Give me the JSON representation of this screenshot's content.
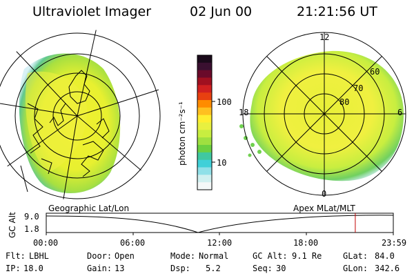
{
  "header": {
    "instrument": "Ultraviolet Imager",
    "date": "02 Jun 00",
    "time": "21:21:56 UT"
  },
  "left_view": {
    "label": "Geographic Lat/Lon"
  },
  "right_view": {
    "label": "Apex MLat/MLT",
    "mlt_labels": [
      "12",
      "18",
      "6",
      "0"
    ],
    "mlat_labels": [
      "60",
      "70",
      "80"
    ]
  },
  "colorbar": {
    "unit_label": "photon cm⁻²s⁻¹",
    "ticks": [
      "100",
      "10"
    ],
    "colors": [
      "#1a0a1a",
      "#3a1030",
      "#6a0a2a",
      "#a01020",
      "#d02020",
      "#e84010",
      "#ff8c00",
      "#ffc020",
      "#ffee30",
      "#e8f040",
      "#c8ee40",
      "#9fe040",
      "#6cd040",
      "#40c8a0",
      "#40d0d8",
      "#90e0e8",
      "#d0f0f0",
      "#f4f8f8"
    ]
  },
  "timeline": {
    "y_axis_label": "GC Alt",
    "y_ticks": [
      "9.0",
      "1.8"
    ],
    "x_ticks": [
      "00:00",
      "06:00",
      "12:00",
      "18:00",
      "23:59"
    ],
    "current_time_hours": 21.37
  },
  "status": {
    "row1": [
      {
        "key": "Flt:",
        "value": "LBHL"
      },
      {
        "key": "Door:",
        "value": "Open"
      },
      {
        "key": "Mode:",
        "value": "Normal"
      },
      {
        "key": "GC Alt:",
        "value": "9.1 Re"
      },
      {
        "key": "GLat:",
        "value": "84.0"
      }
    ],
    "row2": [
      {
        "key": "IP:",
        "value": "18.0"
      },
      {
        "key": "Gain:",
        "value": "13"
      },
      {
        "key": "Dsp:",
        "value": "5.2"
      },
      {
        "key": "Seq:",
        "value": "30"
      },
      {
        "key": "GLon:",
        "value": "342.6"
      }
    ]
  }
}
